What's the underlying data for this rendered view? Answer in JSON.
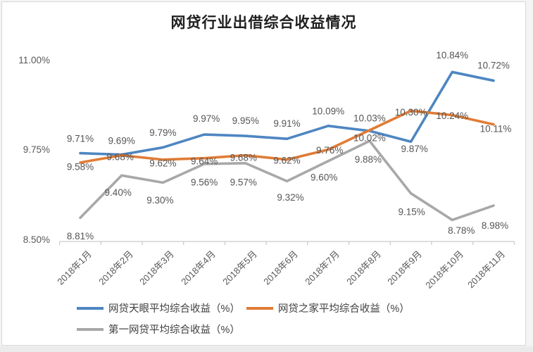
{
  "chart_data": {
    "type": "line",
    "title": "网贷行业出借综合收益情况",
    "categories": [
      "2018年1月",
      "2018年2月",
      "2018年3月",
      "2018年4月",
      "2018年5月",
      "2018年6月",
      "2018年7月",
      "2018年8月",
      "2018年9月",
      "2018年10月",
      "2018年11月"
    ],
    "series": [
      {
        "name": "网贷天眼平均综合收益（%）",
        "color": "#4e86c1",
        "values": [
          9.71,
          9.69,
          9.79,
          9.97,
          9.95,
          9.91,
          10.09,
          10.02,
          9.87,
          10.84,
          10.72
        ]
      },
      {
        "name": "网贷之家平均综合收益（%）",
        "color": "#e07c36",
        "values": [
          9.58,
          9.68,
          9.62,
          9.64,
          9.68,
          9.62,
          9.76,
          10.03,
          10.3,
          10.24,
          10.11
        ]
      },
      {
        "name": "第一网贷平均综合收益（%）",
        "color": "#a8a8a8",
        "values": [
          8.81,
          9.4,
          9.3,
          9.56,
          9.57,
          9.32,
          9.6,
          9.88,
          9.15,
          8.78,
          8.98
        ]
      }
    ],
    "y_axis": {
      "min": 8.5,
      "max": 11.0,
      "ticks": [
        "8.50%",
        "9.75%",
        "11.00%"
      ]
    },
    "data_label_format": "0.00%",
    "data_label_color": "#555555",
    "axis_color": "#c9c9c9",
    "legend_position": "bottom",
    "gridlines": false
  }
}
